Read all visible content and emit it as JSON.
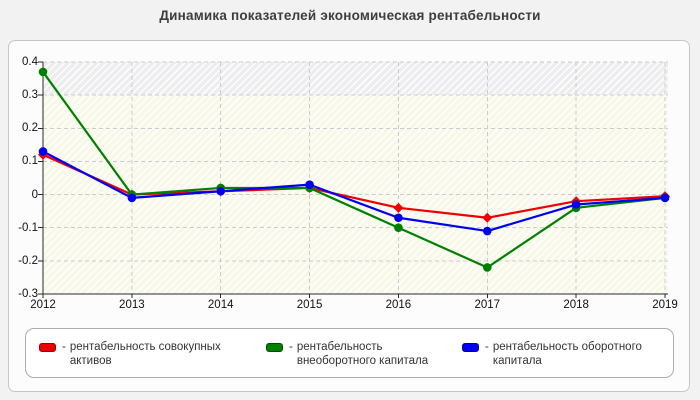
{
  "title": "Динамика показателей экономическая рентабельности",
  "colors": {
    "red_series": "#ee0000",
    "green_series": "#008000",
    "blue_series": "#0000ee",
    "grid": "#cccccc",
    "axis": "#2a2a2a",
    "page_background": "#f2f2f2",
    "plot_hatch_yellow": "#f8f8e9",
    "plot_hatch_gray": "#ededef"
  },
  "chart_data": {
    "type": "line",
    "x": [
      2012,
      2013,
      2014,
      2015,
      2016,
      2017,
      2018,
      2019
    ],
    "series": [
      {
        "id": "red",
        "name": "рентабельность совокупных активов",
        "color": "#ee0000",
        "marker": "diamond",
        "values": [
          0.12,
          0.0,
          0.01,
          0.02,
          -0.04,
          -0.07,
          -0.02,
          -0.005
        ]
      },
      {
        "id": "green",
        "name": "рентабельность внеоборотного капитала",
        "color": "#008000",
        "marker": "circle",
        "values": [
          0.37,
          0.0,
          0.02,
          0.02,
          -0.1,
          -0.22,
          -0.04,
          -0.01
        ]
      },
      {
        "id": "blue",
        "name": "рентабельность оборотного капитала",
        "color": "#0000ee",
        "marker": "circle",
        "values": [
          0.13,
          -0.01,
          0.01,
          0.03,
          -0.07,
          -0.11,
          -0.03,
          -0.01
        ]
      }
    ],
    "title": "Динамика показателей экономическая рентабельности",
    "xlabel": "",
    "ylabel": "",
    "ylim": [
      -0.3,
      0.4
    ],
    "yticks": [
      "0.4",
      "0.3",
      "0.2",
      "0.1",
      "0",
      "-0.1",
      "-0.2",
      "-0.3"
    ],
    "grid": true,
    "legend_position": "bottom"
  },
  "legend": {
    "dash": "-",
    "items": [
      {
        "label": "рентабельность совокупных активов",
        "color_name": "red"
      },
      {
        "label": "рентабельность внеоборотного капитала",
        "color_name": "green"
      },
      {
        "label": "рентабельность оборотного капитала",
        "color_name": "blue"
      }
    ]
  }
}
